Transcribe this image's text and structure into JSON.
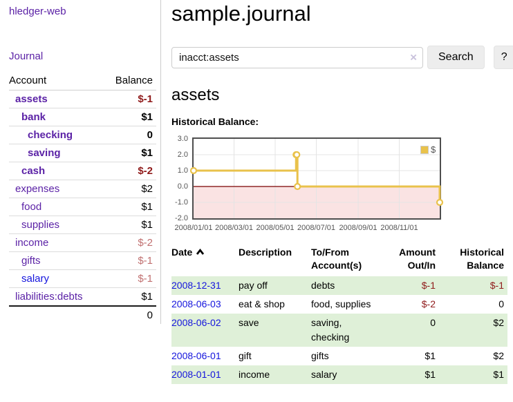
{
  "app": {
    "brand": "hledger-web"
  },
  "sidebar": {
    "journal_label": "Journal",
    "account_header": "Account",
    "balance_header": "Balance",
    "accounts": [
      {
        "name": "assets",
        "balance": "$-1"
      },
      {
        "name": "bank",
        "balance": "$1"
      },
      {
        "name": "checking",
        "balance": "0"
      },
      {
        "name": "saving",
        "balance": "$1"
      },
      {
        "name": "cash",
        "balance": "$-2"
      },
      {
        "name": "expenses",
        "balance": "$2"
      },
      {
        "name": "food",
        "balance": "$1"
      },
      {
        "name": "supplies",
        "balance": "$1"
      },
      {
        "name": "income",
        "balance": "$-2"
      },
      {
        "name": "gifts",
        "balance": "$-1"
      },
      {
        "name": "salary",
        "balance": "$-1"
      },
      {
        "name": "liabilities:debts",
        "balance": "$1"
      }
    ],
    "total": "0"
  },
  "header": {
    "title": "sample.journal"
  },
  "search": {
    "value": "inacct:assets",
    "clear_icon": "×",
    "button_label": "Search",
    "help_label": "?"
  },
  "account_page": {
    "title": "assets",
    "chart_label": "Historical Balance:"
  },
  "chart_data": {
    "type": "line",
    "title": "Historical Balance:",
    "steps": true,
    "series": [
      {
        "name": "$",
        "color": "#e9c24b",
        "points": [
          [
            "2008-01-01",
            1
          ],
          [
            "2008-06-01",
            2
          ],
          [
            "2008-06-02",
            2
          ],
          [
            "2008-06-03",
            0
          ],
          [
            "2008-12-31",
            -1
          ]
        ]
      }
    ],
    "xlim": [
      "2008-01-01",
      "2008-12-31"
    ],
    "ylim": [
      -2,
      3
    ],
    "y_ticks": [
      "3.0",
      "2.0",
      "1.0",
      "0.0",
      "-1.0",
      "-2.0"
    ],
    "x_tick_dates": [
      "2008-01-01",
      "2008-03-01",
      "2008-05-01",
      "2008-07-01",
      "2008-09-01",
      "2008-11-01"
    ],
    "x_tick_labels": [
      "2008/01/01",
      "2008/03/01",
      "2008/05/01",
      "2008/07/01",
      "2008/09/01",
      "2008/11/01"
    ],
    "grid": true,
    "grid_color": "#e4e4e4",
    "negative_region": {
      "from": 0,
      "to": -2,
      "color": "#fae3e3"
    },
    "zero_line_color": "#8f2727",
    "legend": {
      "position": "top-right",
      "label": "$"
    }
  },
  "register": {
    "columns": {
      "date": "Date",
      "description": "Description",
      "accounts": "To/From Account(s)",
      "amount": "Amount Out/In",
      "balance": "Historical Balance"
    },
    "sort": "ascending",
    "rows": [
      {
        "date": "2008-12-31",
        "description": "pay off",
        "accounts": "debts",
        "amount": "$-1",
        "balance": "$-1"
      },
      {
        "date": "2008-06-03",
        "description": "eat & shop",
        "accounts": "food, supplies",
        "amount": "$-2",
        "balance": "0"
      },
      {
        "date": "2008-06-02",
        "description": "save",
        "accounts": "saving, checking",
        "amount": "0",
        "balance": "$2"
      },
      {
        "date": "2008-06-01",
        "description": "gift",
        "accounts": "gifts",
        "amount": "$1",
        "balance": "$2"
      },
      {
        "date": "2008-01-01",
        "description": "income",
        "accounts": "salary",
        "amount": "$1",
        "balance": "$1"
      }
    ]
  }
}
